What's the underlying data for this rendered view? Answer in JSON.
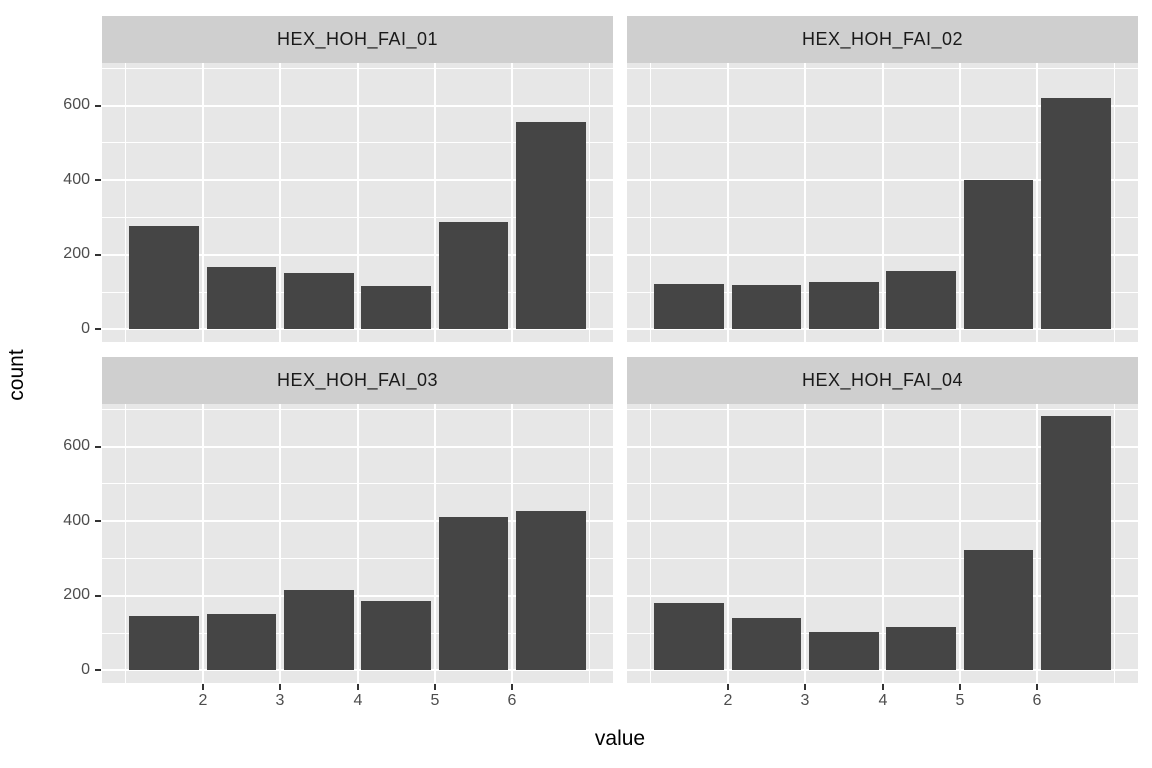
{
  "chart_data": {
    "type": "bar",
    "title": "",
    "xlabel": "value",
    "ylabel": "count",
    "x_ticks": [
      "2",
      "3",
      "4",
      "5",
      "6"
    ],
    "y_ticks": [
      "0",
      "200",
      "400",
      "600"
    ],
    "x_domain": [
      0.7,
      7.3
    ],
    "y_domain": [
      -34,
      714
    ],
    "bar_centers": [
      1.5,
      2.5,
      3.5,
      4.5,
      5.5,
      6.5
    ],
    "bar_width": 0.9,
    "grid": {
      "major_y": [
        0,
        200,
        400,
        600
      ],
      "minor_y": [
        100,
        300,
        500,
        700
      ],
      "major_x": [
        2,
        3,
        4,
        5,
        6
      ],
      "minor_x": [
        1,
        7
      ]
    },
    "facets": [
      {
        "label": "HEX_HOH_FAI_01",
        "values": [
          278,
          166,
          152,
          116,
          289,
          557
        ]
      },
      {
        "label": "HEX_HOH_FAI_02",
        "values": [
          121,
          118,
          126,
          156,
          400,
          621
        ]
      },
      {
        "label": "HEX_HOH_FAI_03",
        "values": [
          145,
          151,
          216,
          186,
          410,
          427
        ]
      },
      {
        "label": "HEX_HOH_FAI_04",
        "values": [
          180,
          140,
          104,
          116,
          323,
          682
        ]
      }
    ],
    "legend": null,
    "colors": {
      "bar": "#454545",
      "panel_bg": "#E7E7E7",
      "strip_bg": "#CFCFCF",
      "gridline": "#FFFFFF",
      "axis_text": "#4D4D4D",
      "strip_text": "#1A1A1A",
      "axis_title": "#000000",
      "tick_mark": "#333333"
    }
  }
}
